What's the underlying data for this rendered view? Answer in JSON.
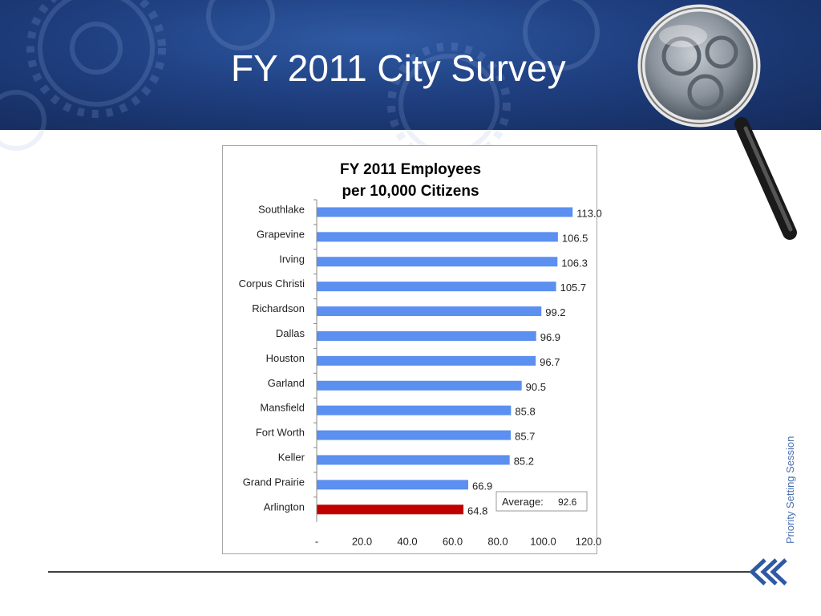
{
  "slide": {
    "title": "FY 2011 City Survey",
    "side_label": "Priority Setting Session"
  },
  "colors": {
    "bar": "#5b8ff0",
    "highlight": "#c00000",
    "banner": "#1f3f80"
  },
  "icons": [
    "gear-pattern-icon",
    "magnifying-glass-icon",
    "double-chevron-left-icon"
  ],
  "chart_data": {
    "type": "bar",
    "orientation": "horizontal",
    "title": "FY 2011 Employees per 10,000 Citizens",
    "title_lines": [
      "FY 2011 Employees",
      "per 10,000 Citizens"
    ],
    "categories": [
      "Southlake",
      "Grapevine",
      "Irving",
      "Corpus Christi",
      "Richardson",
      "Dallas",
      "Houston",
      "Garland",
      "Mansfield",
      "Fort Worth",
      "Keller",
      "Grand Prairie",
      "Arlington"
    ],
    "values": [
      113.0,
      106.5,
      106.3,
      105.7,
      99.2,
      96.9,
      96.7,
      90.5,
      85.8,
      85.7,
      85.2,
      66.9,
      64.8
    ],
    "value_labels": [
      "113.0",
      "106.5",
      "106.3",
      "105.7",
      "99.2",
      "96.9",
      "96.7",
      "90.5",
      "85.8",
      "85.7",
      "85.2",
      "66.9",
      "64.8"
    ],
    "highlight_category": "Arlington",
    "xlim": [
      0,
      120
    ],
    "x_ticks": [
      "-",
      "20.0",
      "40.0",
      "60.0",
      "80.0",
      "100.0",
      "120.0"
    ],
    "annotation": {
      "label": "Average:",
      "value": "92.6"
    },
    "grid": false,
    "legend": "none"
  }
}
